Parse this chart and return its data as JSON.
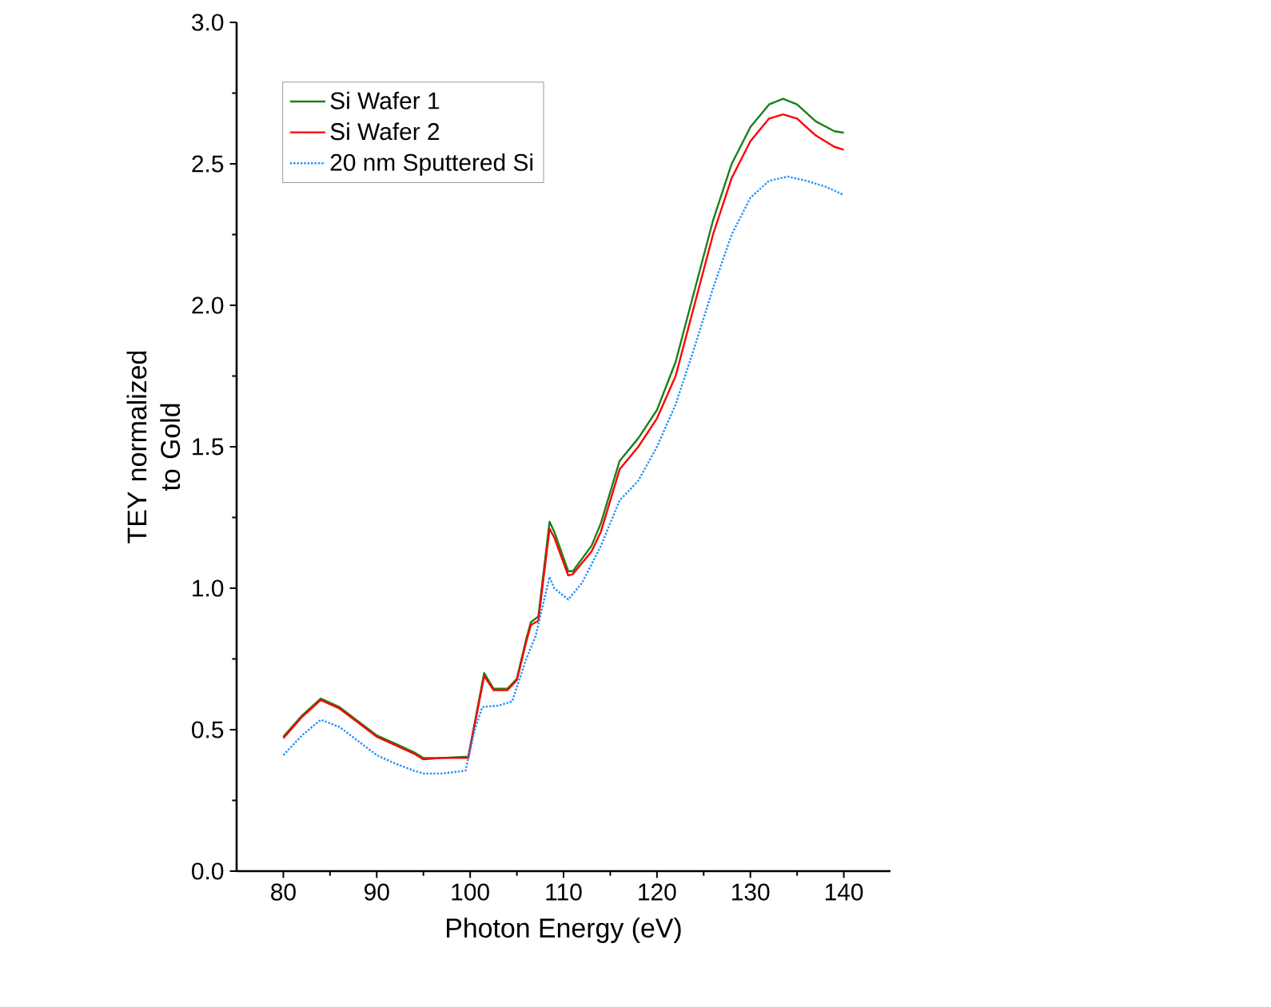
{
  "chart_data": {
    "type": "line",
    "xlabel": "Photon Energy (eV)",
    "ylabel": "TEY normalized to Gold",
    "xlim": [
      75,
      145
    ],
    "ylim": [
      0,
      3.0
    ],
    "xticks": [
      80,
      90,
      100,
      110,
      120,
      130,
      140
    ],
    "yticks": [
      {
        "value": 0,
        "label": "0.0"
      },
      {
        "value": 0.5,
        "label": "0.5"
      },
      {
        "value": 1.0,
        "label": "1.0"
      },
      {
        "value": 1.5,
        "label": "1.5"
      },
      {
        "value": 2.0,
        "label": "2.0"
      },
      {
        "value": 2.5,
        "label": "2.5"
      },
      {
        "value": 3.0,
        "label": "3.0"
      }
    ],
    "legend": "top left",
    "grid": false,
    "series": [
      {
        "name": "Si Wafer 1",
        "color": "#1a801a",
        "line_style": "solid",
        "x": [
          80,
          82,
          84,
          86,
          88,
          90,
          92,
          94,
          95,
          97,
          99.8,
          101.5,
          102.5,
          104,
          105,
          106,
          106.5,
          107.3,
          108.5,
          109,
          110.5,
          111,
          113,
          114,
          116,
          118,
          120,
          122,
          124,
          126,
          128,
          130,
          132,
          133.5,
          135,
          137,
          139,
          140
        ],
        "values": [
          0.475,
          0.55,
          0.61,
          0.58,
          0.53,
          0.48,
          0.45,
          0.42,
          0.4,
          0.4,
          0.405,
          0.7,
          0.645,
          0.645,
          0.68,
          0.82,
          0.88,
          0.9,
          1.235,
          1.2,
          1.06,
          1.06,
          1.15,
          1.23,
          1.45,
          1.53,
          1.63,
          1.8,
          2.05,
          2.3,
          2.5,
          2.63,
          2.71,
          2.73,
          2.71,
          2.65,
          2.615,
          2.61
        ]
      },
      {
        "name": "Si Wafer 2",
        "color": "#ff0000",
        "line_style": "solid",
        "x": [
          80,
          82,
          84,
          86,
          88,
          90,
          92,
          94,
          95,
          97,
          99.8,
          101.5,
          102.5,
          104,
          105,
          106,
          106.5,
          107.3,
          108.5,
          109,
          110.5,
          111,
          113,
          114,
          116,
          118,
          120,
          122,
          124,
          126,
          128,
          130,
          132,
          133.5,
          135,
          137,
          139,
          140
        ],
        "values": [
          0.47,
          0.545,
          0.605,
          0.575,
          0.525,
          0.475,
          0.445,
          0.415,
          0.395,
          0.4,
          0.4,
          0.69,
          0.64,
          0.64,
          0.675,
          0.81,
          0.87,
          0.885,
          1.21,
          1.18,
          1.045,
          1.05,
          1.13,
          1.2,
          1.42,
          1.5,
          1.6,
          1.75,
          2.0,
          2.25,
          2.45,
          2.58,
          2.66,
          2.675,
          2.66,
          2.6,
          2.56,
          2.55
        ]
      },
      {
        "name": "20 nm Sputtered Si",
        "color": "#1e90ff",
        "line_style": "dotted",
        "x": [
          80,
          82,
          84,
          86,
          88,
          90,
          92,
          94,
          95,
          97,
          99.5,
          100.5,
          101.3,
          103,
          104.5,
          106,
          107,
          108.5,
          109,
          110.5,
          112,
          114,
          116,
          118,
          120,
          122,
          124,
          126,
          128,
          130,
          132,
          134,
          136,
          138,
          140
        ],
        "values": [
          0.41,
          0.48,
          0.535,
          0.51,
          0.46,
          0.41,
          0.38,
          0.355,
          0.345,
          0.345,
          0.355,
          0.5,
          0.58,
          0.585,
          0.6,
          0.75,
          0.83,
          1.04,
          1.0,
          0.96,
          1.02,
          1.15,
          1.31,
          1.38,
          1.5,
          1.65,
          1.85,
          2.06,
          2.25,
          2.38,
          2.44,
          2.455,
          2.44,
          2.42,
          2.39
        ]
      }
    ]
  }
}
